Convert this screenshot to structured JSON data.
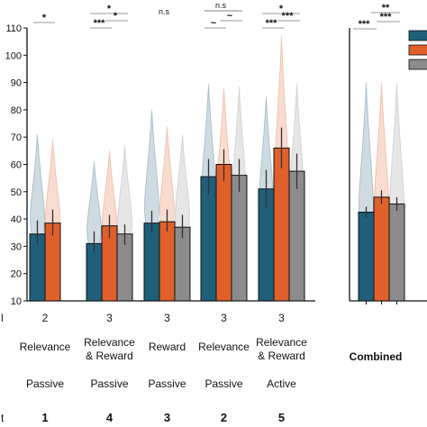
{
  "chart_data": {
    "type": "bar",
    "ylim": [
      10,
      110
    ],
    "yticks": [
      10,
      20,
      30,
      40,
      50,
      60,
      70,
      80,
      90,
      100,
      110
    ],
    "colors": {
      "teal": "#1f5f7a",
      "orange": "#e0602b",
      "gray": "#8c8c8c"
    },
    "legend": {
      "placement": "top-right",
      "entries": [
        "",
        "",
        ""
      ]
    },
    "row_labels": [
      "l",
      "",
      "",
      "t"
    ],
    "groups": [
      {
        "sig": [
          "*"
        ],
        "row1": "2",
        "row2": "Relevance",
        "row3": "Passive",
        "row4": "1",
        "bars": [
          {
            "series": "teal",
            "value": 34.5,
            "err": [
              30.5,
              39.5
            ],
            "violin": [
              29,
              71
            ]
          },
          {
            "series": "orange",
            "value": 38.5,
            "err": [
              34,
              43.5
            ],
            "violin": [
              30,
              69
            ]
          }
        ]
      },
      {
        "sig": [
          "*",
          "*",
          "***"
        ],
        "row1": "3",
        "row2": "Relevance\n& Reward",
        "row3": "Passive",
        "row4": "4",
        "bars": [
          {
            "series": "teal",
            "value": 31,
            "err": [
              28,
              35.5
            ],
            "violin": [
              27,
              61
            ]
          },
          {
            "series": "orange",
            "value": 37.5,
            "err": [
              33,
              41.5
            ],
            "violin": [
              29,
              65
            ]
          },
          {
            "series": "gray",
            "value": 34.5,
            "err": [
              30.5,
              38
            ],
            "violin": [
              28,
              67
            ]
          }
        ]
      },
      {
        "sig": [
          "n.s"
        ],
        "row1": "3",
        "row2": "Reward",
        "row3": "Passive",
        "row4": "3",
        "bars": [
          {
            "series": "teal",
            "value": 38.5,
            "err": [
              35,
              43
            ],
            "violin": [
              31,
              80
            ]
          },
          {
            "series": "orange",
            "value": 39,
            "err": [
              35.5,
              43.5
            ],
            "violin": [
              31,
              74
            ]
          },
          {
            "series": "gray",
            "value": 37,
            "err": [
              33,
              41.5
            ],
            "violin": [
              30,
              71
            ]
          }
        ]
      },
      {
        "sig": [
          "n.s",
          "~",
          "~"
        ],
        "row1": "3",
        "row2": "Relevance",
        "row3": "Passive",
        "row4": "2",
        "bars": [
          {
            "series": "teal",
            "value": 55.5,
            "err": [
              49,
              62
            ],
            "violin": [
              35,
              89.5
            ]
          },
          {
            "series": "orange",
            "value": 60,
            "err": [
              54,
              65.5
            ],
            "violin": [
              36,
              88
            ]
          },
          {
            "series": "gray",
            "value": 56,
            "err": [
              50,
              62
            ],
            "violin": [
              35,
              88.5
            ]
          }
        ]
      },
      {
        "sig": [
          "*",
          "***",
          "***"
        ],
        "row1": "3",
        "row2": "Relevance\n& Reward",
        "row3": "Active",
        "row4": "5",
        "bars": [
          {
            "series": "teal",
            "value": 51,
            "err": [
              44,
              58
            ],
            "violin": [
              32,
              85
            ]
          },
          {
            "series": "orange",
            "value": 66,
            "err": [
              58.5,
              73.5
            ],
            "violin": [
              36,
              107
            ]
          },
          {
            "series": "gray",
            "value": 57.5,
            "err": [
              51,
              64
            ],
            "violin": [
              35,
              89.5
            ]
          }
        ]
      }
    ],
    "combined": {
      "label": "Combined",
      "sig": [
        "**",
        "***",
        "***"
      ],
      "bars": [
        {
          "series": "teal",
          "value": 42.5,
          "err": [
            40.5,
            44.5
          ],
          "violin": [
            28,
            90
          ]
        },
        {
          "series": "orange",
          "value": 48,
          "err": [
            45.5,
            50.5
          ],
          "violin": [
            29,
            90
          ]
        },
        {
          "series": "gray",
          "value": 45.5,
          "err": [
            43,
            48
          ],
          "violin": [
            28,
            90
          ]
        }
      ]
    }
  }
}
